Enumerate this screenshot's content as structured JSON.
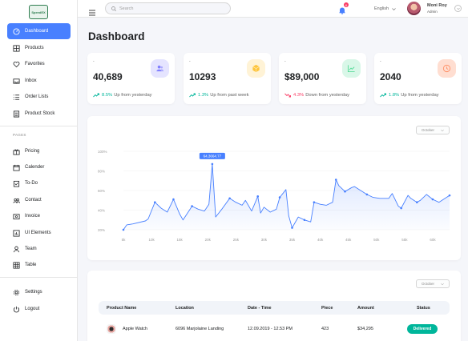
{
  "app": {
    "logo_text": "SpeedEX"
  },
  "sidebar": {
    "items": [
      {
        "label": "Dashboard",
        "icon": "dashboard-icon",
        "active": true
      },
      {
        "label": "Products",
        "icon": "grid-icon"
      },
      {
        "label": "Favorites",
        "icon": "heart-icon"
      },
      {
        "label": "Inbox",
        "icon": "inbox-icon"
      },
      {
        "label": "Order Lists",
        "icon": "list-icon"
      },
      {
        "label": "Product Stock",
        "icon": "stock-icon"
      }
    ],
    "section_label": "PAGES",
    "pages": [
      {
        "label": "Pricing",
        "icon": "gift-icon"
      },
      {
        "label": "Calender",
        "icon": "calendar-icon"
      },
      {
        "label": "To-Do",
        "icon": "todo-icon"
      },
      {
        "label": "Contact",
        "icon": "contact-icon"
      },
      {
        "label": "Invoice",
        "icon": "invoice-icon"
      },
      {
        "label": "UI Elements",
        "icon": "chart-bars-icon"
      },
      {
        "label": "Team",
        "icon": "person-icon"
      },
      {
        "label": "Table",
        "icon": "table-icon"
      }
    ],
    "bottom": [
      {
        "label": "Settings",
        "icon": "gear-icon"
      },
      {
        "label": "Logout",
        "icon": "power-icon"
      }
    ]
  },
  "topbar": {
    "search_placeholder": "Search",
    "notification_count": "6",
    "language": "English",
    "user_name": "Moni Roy",
    "user_role": "Admin"
  },
  "page_title": "Dashboard",
  "stats": [
    {
      "label": "-",
      "value": "40,689",
      "pct": "8.5%",
      "suffix": "Up from yesterday",
      "direction": "up",
      "icon": "users-icon",
      "icon_bg": "#e5e4ff",
      "icon_color": "#8280ff"
    },
    {
      "label": "-",
      "value": "10293",
      "pct": "1.3%",
      "suffix": "Up from past week",
      "direction": "up",
      "icon": "box-icon",
      "icon_bg": "#fff3d6",
      "icon_color": "#fec53d"
    },
    {
      "label": "-",
      "value": "$89,000",
      "pct": "4.3%",
      "suffix": "Down from yesterday",
      "direction": "down",
      "icon": "line-chart-icon",
      "icon_bg": "#d9f7e8",
      "icon_color": "#4ad991"
    },
    {
      "label": "-",
      "value": "2040",
      "pct": "1.8%",
      "suffix": "Up from yesterday",
      "direction": "up",
      "icon": "clock-icon",
      "icon_bg": "#ffded1",
      "icon_color": "#ff9066"
    }
  ],
  "colors": {
    "up": "#00b69b",
    "down": "#f93c65",
    "accent": "#4880ff"
  },
  "chart_filter": "October",
  "table_filter": "October",
  "chart_data": {
    "type": "area",
    "yticks": [
      "20%",
      "40%",
      "60%",
      "80%",
      "100%"
    ],
    "xticks": [
      "5k",
      "10k",
      "15k",
      "20k",
      "25k",
      "30k",
      "35k",
      "40k",
      "45k",
      "50k",
      "55k",
      "60k"
    ],
    "ylim": [
      20,
      100
    ],
    "xlim": [
      5,
      63
    ],
    "tooltip": {
      "x": 20.8,
      "y": 87,
      "label": "64,3664.77"
    },
    "points": [
      [
        5,
        20
      ],
      [
        5.6,
        25
      ],
      [
        6.7,
        26
      ],
      [
        8.9,
        29
      ],
      [
        9.4,
        31
      ],
      [
        10.6,
        48
      ],
      [
        11.7,
        42
      ],
      [
        12.8,
        38
      ],
      [
        13.9,
        51
      ],
      [
        15,
        36
      ],
      [
        15.6,
        30
      ],
      [
        17.2,
        44
      ],
      [
        18.3,
        41
      ],
      [
        19.4,
        39
      ],
      [
        20.2,
        46
      ],
      [
        20.8,
        87
      ],
      [
        21.4,
        33
      ],
      [
        22.5,
        41
      ],
      [
        23.9,
        52
      ],
      [
        25,
        48
      ],
      [
        26.1,
        45
      ],
      [
        26.7,
        50
      ],
      [
        27.8,
        39
      ],
      [
        28.9,
        54
      ],
      [
        29.4,
        37
      ],
      [
        30,
        43
      ],
      [
        31.1,
        38
      ],
      [
        32.2,
        41
      ],
      [
        32.8,
        53
      ],
      [
        33.9,
        61
      ],
      [
        34.4,
        34
      ],
      [
        35,
        22
      ],
      [
        36.1,
        33
      ],
      [
        37.2,
        30
      ],
      [
        38.3,
        28
      ],
      [
        38.9,
        48
      ],
      [
        40,
        46
      ],
      [
        41.1,
        45
      ],
      [
        42.2,
        48
      ],
      [
        42.8,
        71
      ],
      [
        43.3,
        65
      ],
      [
        44.4,
        59
      ],
      [
        45.6,
        63
      ],
      [
        46.1,
        64
      ],
      [
        47.2,
        60
      ],
      [
        48.3,
        56
      ],
      [
        49.4,
        53
      ],
      [
        50.6,
        52
      ],
      [
        51.1,
        52
      ],
      [
        52.2,
        52
      ],
      [
        52.8,
        57
      ],
      [
        53.9,
        44
      ],
      [
        54.4,
        42
      ],
      [
        55.6,
        55
      ],
      [
        56.1,
        52
      ],
      [
        57.2,
        48
      ],
      [
        57.8,
        50
      ],
      [
        58.9,
        56
      ],
      [
        60,
        51
      ],
      [
        61.1,
        48
      ],
      [
        62.2,
        52
      ],
      [
        63,
        55
      ]
    ]
  },
  "table": {
    "headers": [
      "Product Name",
      "Location",
      "Date - Time",
      "Piece",
      "Amount",
      "Status"
    ],
    "rows": [
      {
        "product": "Apple Watch",
        "location": "6096 Marjolaine Landing",
        "datetime": "12.09.2019 - 12.53 PM",
        "piece": "423",
        "amount": "$34,295",
        "status": "Delivered"
      }
    ]
  }
}
